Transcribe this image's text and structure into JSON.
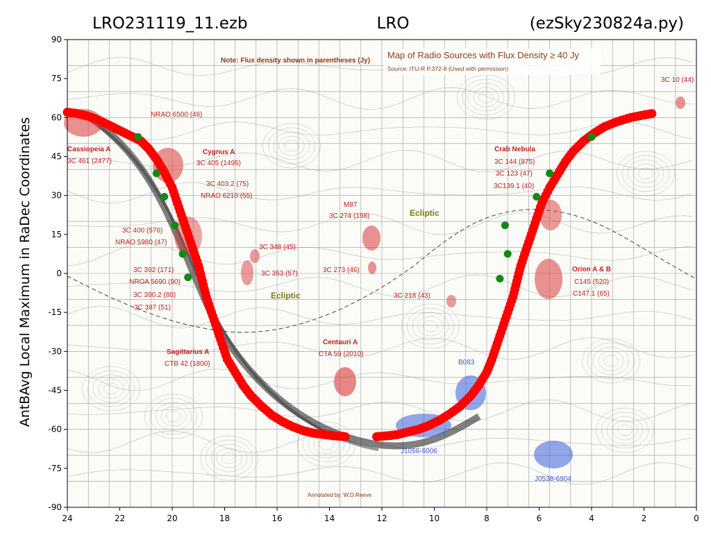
{
  "header": {
    "left": "LRO231119_11.ezb",
    "center": "LRO",
    "right": "(ezSky230824a.py)"
  },
  "chart_data": {
    "type": "scatter",
    "ylabel": "AntBAvg Local Maximum in RaDec Coordinates",
    "xlabel": "",
    "xlim": [
      24,
      0
    ],
    "ylim": [
      -90,
      90
    ],
    "xticks": [
      "24",
      "22",
      "20",
      "18",
      "16",
      "14",
      "12",
      "10",
      "8",
      "6",
      "4",
      "2",
      "0"
    ],
    "yticks": [
      "90",
      "75",
      "60",
      "45",
      "30",
      "15",
      "0",
      "-15",
      "-30",
      "-45",
      "-60",
      "-75",
      "-90"
    ],
    "grid": false,
    "series": [
      {
        "color": "#ff0000",
        "marker": "circle",
        "points": [
          [
            24.0,
            62
          ],
          [
            23.6,
            61.5
          ],
          [
            23.2,
            60.5
          ],
          [
            22.8,
            59
          ],
          [
            22.4,
            57
          ],
          [
            22.0,
            55
          ],
          [
            21.6,
            53
          ],
          [
            21.2,
            51
          ],
          [
            20.9,
            48
          ],
          [
            20.6,
            44
          ],
          [
            20.3,
            39
          ],
          [
            20.0,
            33
          ],
          [
            19.8,
            27
          ],
          [
            19.6,
            21
          ],
          [
            19.4,
            15
          ],
          [
            19.2,
            9
          ],
          [
            19.0,
            3
          ],
          [
            18.85,
            -3
          ],
          [
            18.7,
            -9
          ],
          [
            18.5,
            -15
          ],
          [
            18.3,
            -21
          ],
          [
            18.1,
            -27
          ],
          [
            17.9,
            -33
          ],
          [
            17.6,
            -38
          ],
          [
            17.3,
            -43
          ],
          [
            17.0,
            -47
          ],
          [
            16.6,
            -51
          ],
          [
            16.2,
            -54.5
          ],
          [
            15.8,
            -57
          ],
          [
            15.4,
            -59
          ],
          [
            15.0,
            -60.5
          ],
          [
            14.6,
            -61.5
          ],
          [
            14.2,
            -62
          ],
          [
            13.8,
            -62.5
          ],
          [
            13.4,
            -62.8
          ],
          [
            12.2,
            -62.8
          ],
          [
            11.8,
            -62.5
          ],
          [
            11.4,
            -62
          ],
          [
            11.0,
            -61
          ],
          [
            10.6,
            -60
          ],
          [
            10.2,
            -58.5
          ],
          [
            9.8,
            -56.5
          ],
          [
            9.4,
            -54
          ],
          [
            9.0,
            -51
          ],
          [
            8.6,
            -47
          ],
          [
            8.3,
            -43
          ],
          [
            8.0,
            -38
          ],
          [
            7.8,
            -33
          ],
          [
            7.6,
            -27
          ],
          [
            7.4,
            -21
          ],
          [
            7.2,
            -15
          ],
          [
            7.0,
            -9
          ],
          [
            6.85,
            -3
          ],
          [
            6.7,
            3
          ],
          [
            6.5,
            9
          ],
          [
            6.3,
            15
          ],
          [
            6.1,
            21
          ],
          [
            5.9,
            27
          ],
          [
            5.6,
            33
          ],
          [
            5.3,
            38
          ],
          [
            5.0,
            43
          ],
          [
            4.7,
            47
          ],
          [
            4.3,
            51
          ],
          [
            3.9,
            54
          ],
          [
            3.5,
            56.5
          ],
          [
            3.0,
            58.5
          ],
          [
            2.5,
            60
          ],
          [
            2.0,
            61
          ],
          [
            1.7,
            61.5
          ]
        ]
      },
      {
        "color": "#118a11",
        "marker": "circle",
        "points": [
          [
            21.3,
            52.5
          ],
          [
            20.6,
            38.5
          ],
          [
            20.3,
            29.5
          ],
          [
            19.9,
            18.5
          ],
          [
            19.6,
            7.5
          ],
          [
            19.4,
            -1.5
          ],
          [
            7.5,
            -2
          ],
          [
            7.2,
            7.5
          ],
          [
            7.3,
            18.5
          ],
          [
            6.1,
            29.5
          ],
          [
            5.6,
            38.5
          ],
          [
            4.0,
            52.5
          ]
        ]
      }
    ]
  },
  "background_map": {
    "note": "Note: Flux density shown in parentheses (Jy)",
    "title": "Map of Radio Sources with Flux Density ≥ 40 Jy",
    "source": "Source: ITU-R P.372-8 (Used with permission)",
    "annotated_by": "Annotated by: W.D.Reeve",
    "ecliptic_label": "Ecliptic",
    "labels": {
      "nrao6500": "NRAO 6500 (46)",
      "cassiopeia_name": "Cassiopeia A",
      "cassiopeia_val": "3C 461 (2477)",
      "cygnus_name": "Cygnus A",
      "cygnus_val": "3C 405 (1495)",
      "c403": "3C 403.2 (75)",
      "nrao6210": "NRAO 6210 (55)",
      "c400": "3C 400 (576)",
      "nrao5980": "NRAO 5980 (47)",
      "c392": "3C 392 (171)",
      "nroa5690": "NROA 5690 (90)",
      "c390": "3C 390.2 (80)",
      "c387": "3C 387  (51)",
      "sgr_name": "Sagittarius A",
      "sgr_val": "CTB 42 (1800)",
      "c348": "3C 348 (45)",
      "c353": "3C 353 (57)",
      "m87_name": "M87",
      "m87_val": "3C 274 (198)",
      "c273": "3C 273 (46)",
      "centauri_name": "Centauri A",
      "centauri_val": "CTA 59 (2010)",
      "c218": "3C 218 (43)",
      "crab_name": "Crab Nebula",
      "crab1": "3C 144 (875)",
      "crab2": "3C 123 (47)",
      "crab3": "3C139.1 (40)",
      "orion_name": "Orion A & B",
      "orion1": "C145 (520)",
      "orion2": "C147.1 (65)",
      "c10": "3C 10 (44)",
      "b083": "B083",
      "j1056": "J1056-6006",
      "j0538": "J0538-6904"
    }
  }
}
